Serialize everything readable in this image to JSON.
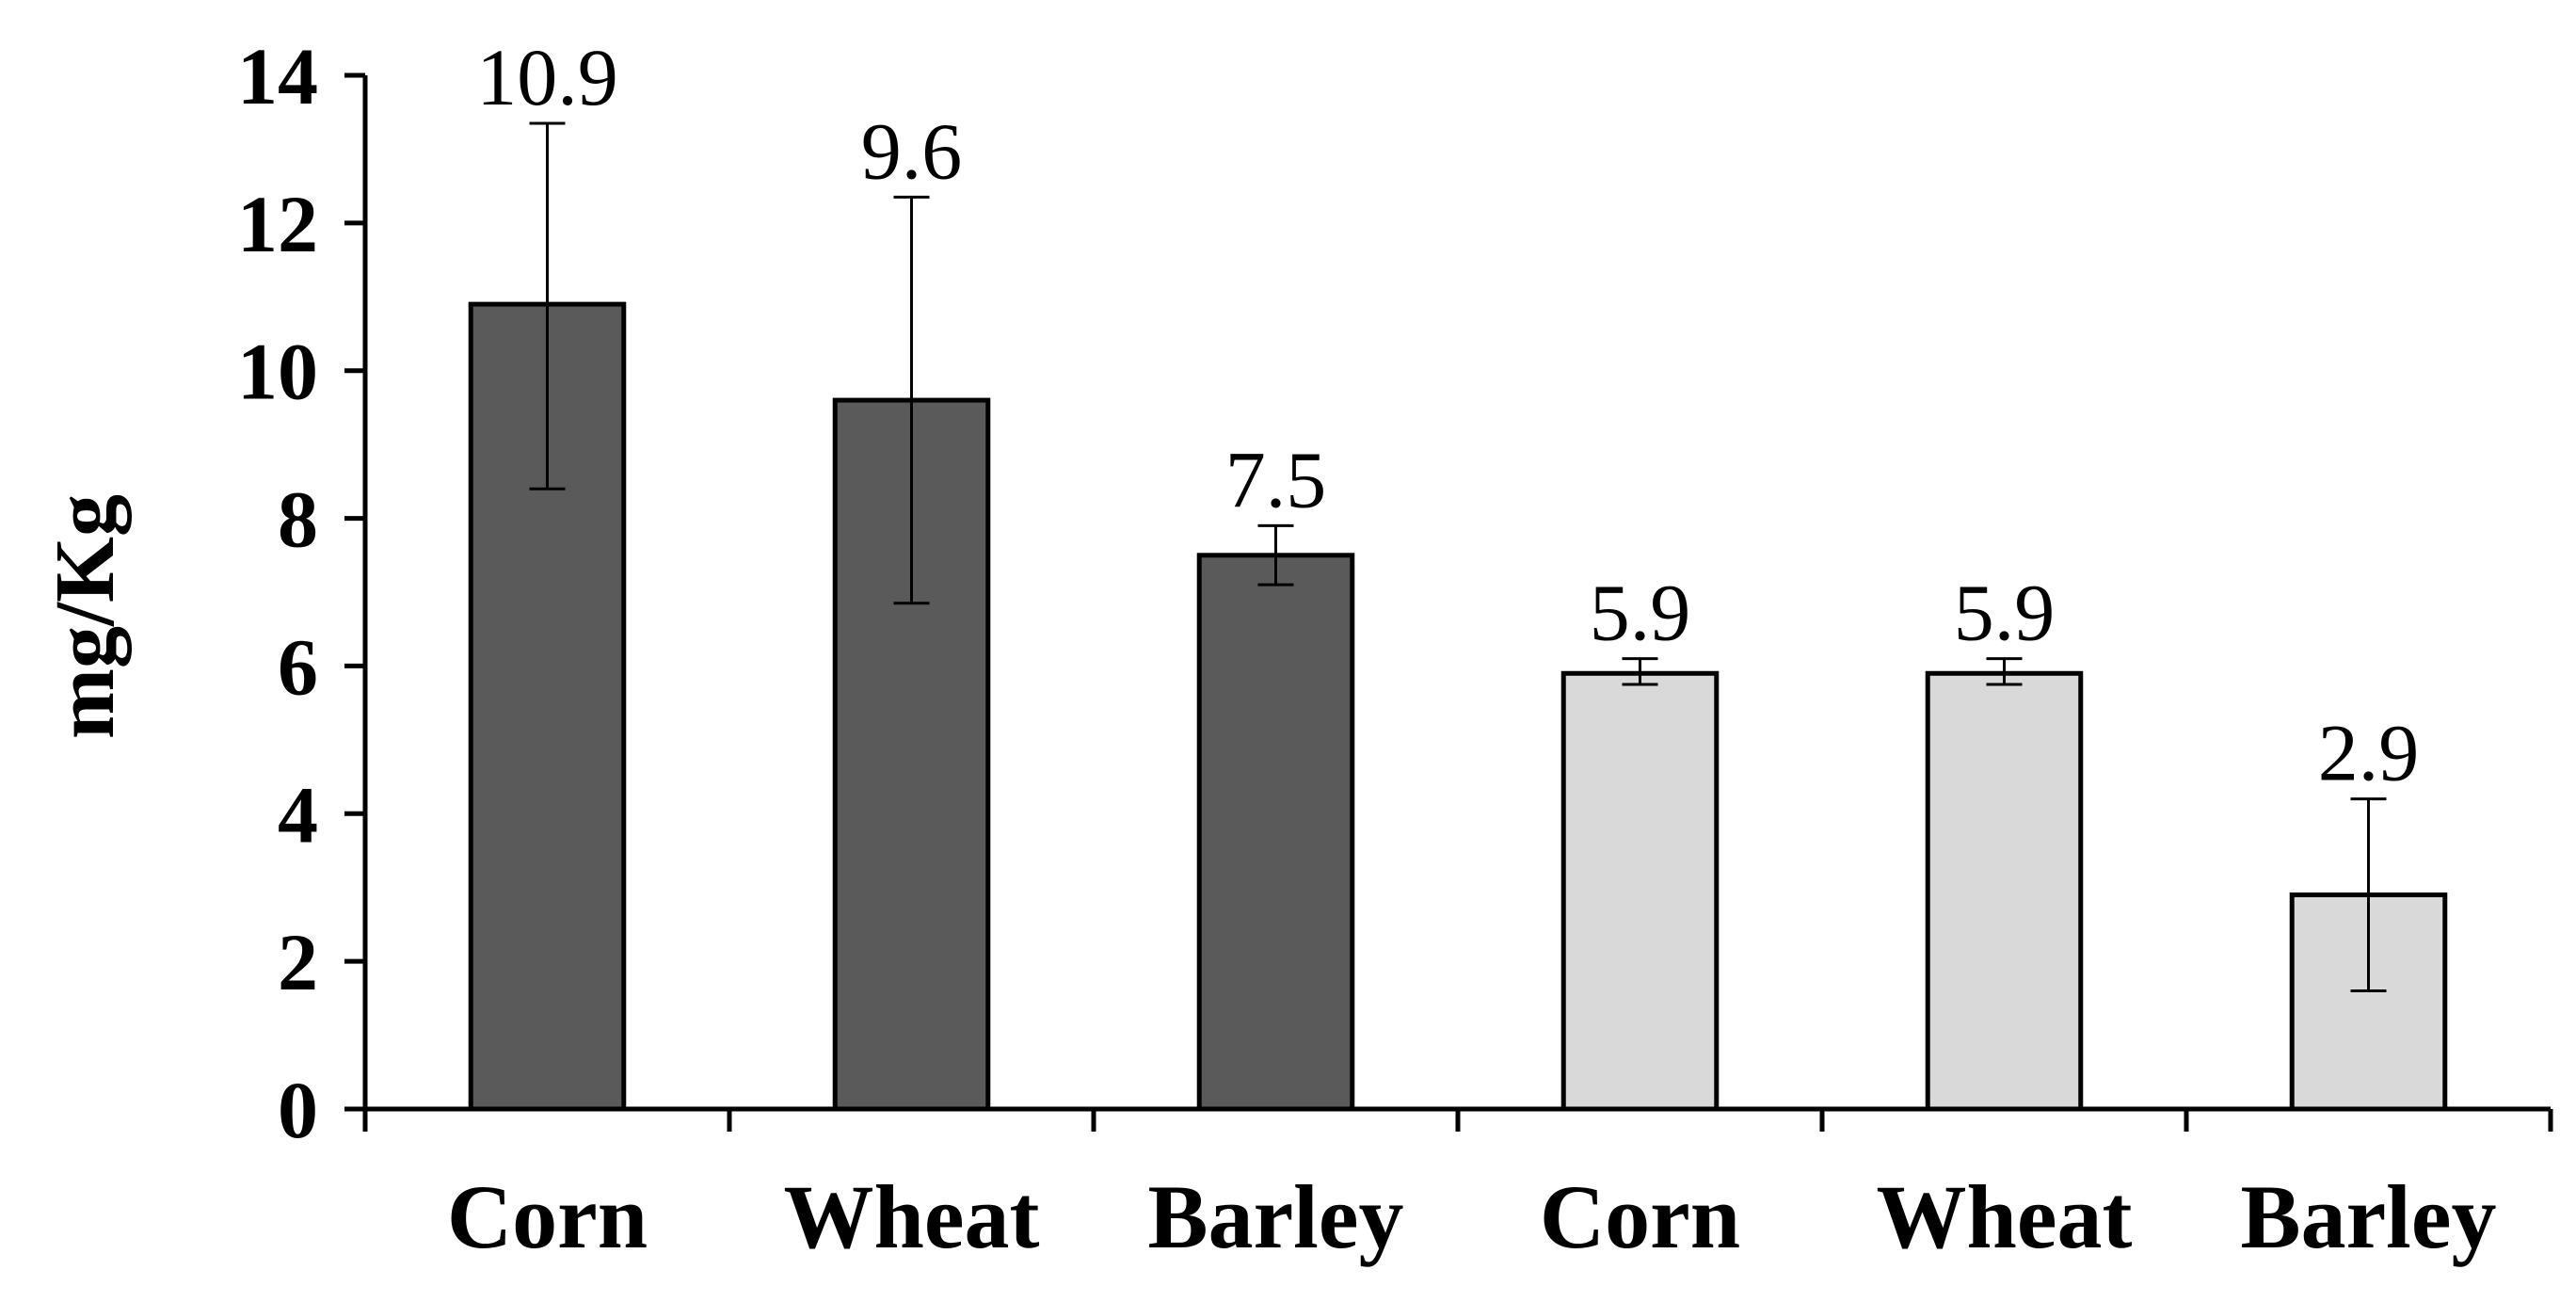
{
  "chart_data": {
    "type": "bar",
    "title": "",
    "xlabel": "",
    "ylabel": "mg/Kg",
    "ylim": [
      0,
      14
    ],
    "y_ticks": [
      "0",
      "2",
      "4",
      "6",
      "8",
      "10",
      "12",
      "14"
    ],
    "grid": false,
    "legend": "none",
    "categories": [
      "Corn",
      "Wheat",
      "Barley",
      "Corn",
      "Wheat",
      "Barley"
    ],
    "values": [
      10.9,
      9.6,
      7.5,
      5.9,
      5.9,
      2.9
    ],
    "value_labels": [
      "10.9",
      "9.6",
      "7.5",
      "5.9",
      "5.9",
      "2.9"
    ],
    "error_low": [
      8.4,
      6.85,
      7.1,
      5.75,
      5.75,
      1.6
    ],
    "error_high": [
      13.35,
      12.35,
      7.9,
      6.1,
      6.1,
      4.2
    ],
    "bar_colors": [
      "#5a5a5a",
      "#5a5a5a",
      "#5a5a5a",
      "#d9d9d9",
      "#d9d9d9",
      "#d9d9d9"
    ],
    "bar_edge_color": "#000000"
  }
}
